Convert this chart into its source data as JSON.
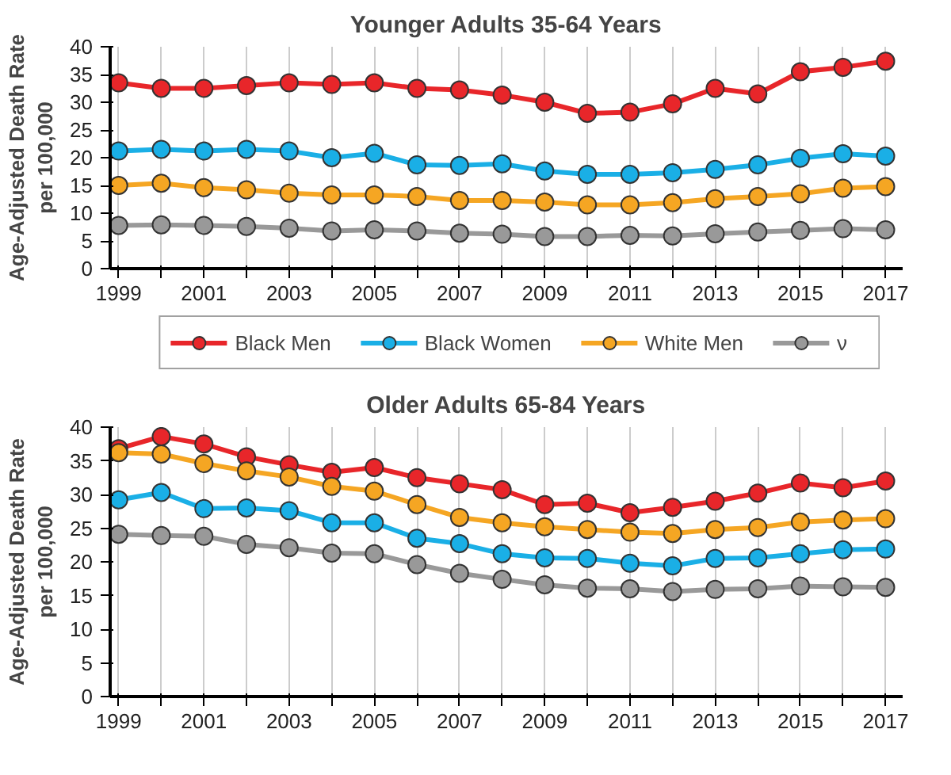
{
  "chart_data": [
    {
      "type": "line",
      "title": "Younger Adults 35-64 Years",
      "ylabel": "Age-Adjusted Death Rate\nper 100,000",
      "x": [
        1999,
        2000,
        2001,
        2002,
        2003,
        2004,
        2005,
        2006,
        2007,
        2008,
        2009,
        2010,
        2011,
        2012,
        2013,
        2014,
        2015,
        2016,
        2017
      ],
      "series": [
        {
          "name": "Black Men",
          "color": "#e8262a",
          "values": [
            33.5,
            32.5,
            32.5,
            33,
            33.5,
            33.2,
            33.5,
            32.5,
            32.2,
            31.3,
            30,
            28,
            28.2,
            29.7,
            32.5,
            31.5,
            35.5,
            36.3,
            37.4
          ]
        },
        {
          "name": "Black Women",
          "color": "#1aafe6",
          "values": [
            21.2,
            21.5,
            21.2,
            21.5,
            21.2,
            20,
            20.8,
            18.7,
            18.6,
            18.9,
            17.6,
            17,
            17,
            17.3,
            17.9,
            18.7,
            19.9,
            20.7,
            20.3
          ]
        },
        {
          "name": "White Men",
          "color": "#f5a623",
          "values": [
            15,
            15.4,
            14.6,
            14.2,
            13.6,
            13.3,
            13.3,
            13,
            12.3,
            12.3,
            12,
            11.5,
            11.5,
            11.9,
            12.6,
            13,
            13.5,
            14.5,
            14.8
          ]
        },
        {
          "name": "ν",
          "color": "#999999",
          "values": [
            7.8,
            7.9,
            7.8,
            7.6,
            7.3,
            6.8,
            7,
            6.8,
            6.4,
            6.2,
            5.8,
            5.8,
            6,
            5.9,
            6.3,
            6.6,
            6.9,
            7.2,
            7
          ]
        }
      ],
      "xlim": [
        1998.8,
        2017.4
      ],
      "xticks": [
        1999,
        {
          "value": 2000,
          "label": null
        },
        2001,
        {
          "value": 2002,
          "label": null
        },
        2003,
        {
          "value": 2004,
          "label": null
        },
        2005,
        {
          "value": 2006,
          "label": null
        },
        2007,
        {
          "value": 2008,
          "label": null
        },
        2009,
        {
          "value": 2010,
          "label": null
        },
        2011,
        {
          "value": 2012,
          "label": null
        },
        2013,
        {
          "value": 2014,
          "label": null
        },
        2015,
        {
          "value": 2016,
          "label": null
        },
        2017
      ],
      "ylim": [
        0,
        40
      ],
      "yticks": [
        0,
        5,
        10,
        15,
        20,
        25,
        30,
        35,
        40
      ],
      "grid": "x",
      "legend": "bottom",
      "marker": "circle",
      "line_style": "solid"
    },
    {
      "type": "line",
      "title": "Older Adults 65-84 Years",
      "ylabel": "Age-Adjusted Death Rate\nper 100,000",
      "x": [
        1999,
        2000,
        2001,
        2002,
        2003,
        2004,
        2005,
        2006,
        2007,
        2008,
        2009,
        2010,
        2011,
        2012,
        2013,
        2014,
        2015,
        2016,
        2017
      ],
      "series": [
        {
          "color": "#e8262a",
          "values": [
            36.8,
            38.6,
            37.5,
            35.6,
            34.4,
            33.3,
            34,
            32.5,
            31.6,
            30.7,
            28.5,
            28.7,
            27.3,
            28.1,
            29,
            30.2,
            31.7,
            31,
            32
          ]
        },
        {
          "color": "#1aafe6",
          "values": [
            29.2,
            30.3,
            27.9,
            28,
            27.6,
            25.8,
            25.8,
            23.5,
            22.7,
            21.2,
            20.6,
            20.5,
            19.8,
            19.4,
            20.5,
            20.6,
            21.2,
            21.8,
            21.9
          ]
        },
        {
          "color": "#f5a623",
          "values": [
            36.2,
            36,
            34.6,
            33.5,
            32.6,
            31.2,
            30.5,
            28.5,
            26.6,
            25.8,
            25.2,
            24.8,
            24.4,
            24.2,
            24.8,
            25.1,
            25.9,
            26.2,
            26.4
          ]
        },
        {
          "color": "#999999",
          "values": [
            24.1,
            23.9,
            23.8,
            22.6,
            22.1,
            21.3,
            21.2,
            19.6,
            18.3,
            17.4,
            16.6,
            16.1,
            16,
            15.6,
            15.9,
            16,
            16.4,
            16.3,
            16.2
          ]
        }
      ],
      "xlim": [
        1998.8,
        2017.4
      ],
      "xticks": [
        1999,
        {
          "value": 2000,
          "label": null
        },
        2001,
        {
          "value": 2002,
          "label": null
        },
        2003,
        {
          "value": 2004,
          "label": null
        },
        2005,
        {
          "value": 2006,
          "label": null
        },
        2007,
        {
          "value": 2008,
          "label": null
        },
        2009,
        {
          "value": 2010,
          "label": null
        },
        2011,
        {
          "value": 2012,
          "label": null
        },
        2013,
        {
          "value": 2014,
          "label": null
        },
        2015,
        {
          "value": 2016,
          "label": null
        },
        2017
      ],
      "ylim": [
        0,
        40
      ],
      "yticks": [
        0,
        5,
        10,
        15,
        20,
        25,
        30,
        35,
        40
      ],
      "grid": "x",
      "legend": false,
      "marker": "circle",
      "line_style": "solid"
    }
  ]
}
